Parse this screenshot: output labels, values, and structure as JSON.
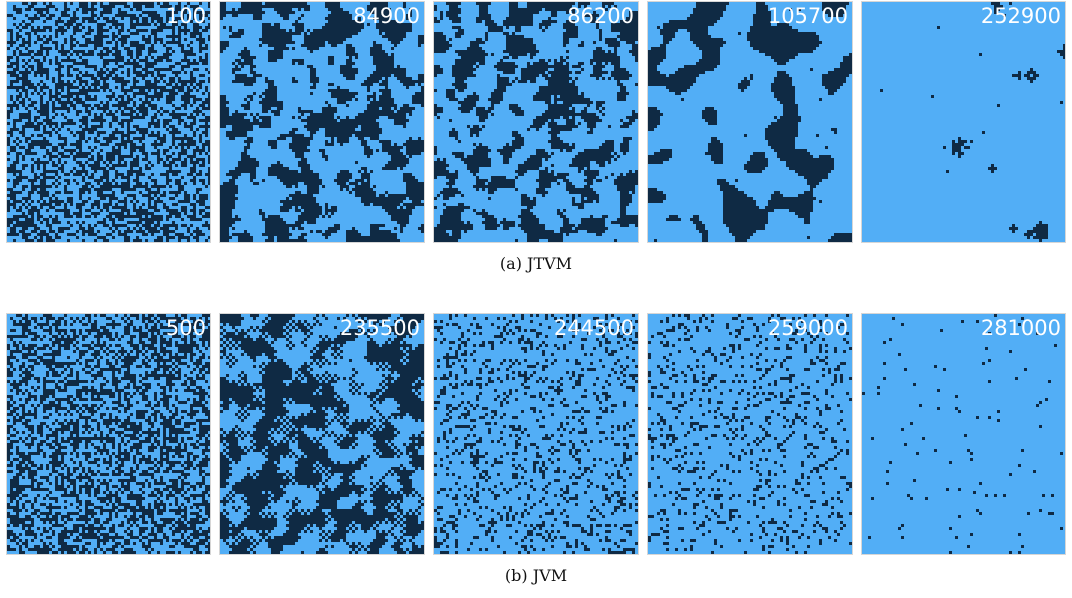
{
  "colors": {
    "background_cell": "#52aef6",
    "dark_cell": "#0f2a44",
    "label": "#ffffff"
  },
  "figure": {
    "rows": [
      {
        "caption": "(a) JTVM",
        "panels": [
          {
            "label": "100",
            "dark_fraction": 0.5,
            "texture": "noise"
          },
          {
            "label": "84900",
            "dark_fraction": 0.42,
            "texture": "patches"
          },
          {
            "label": "86200",
            "dark_fraction": 0.4,
            "texture": "patches"
          },
          {
            "label": "105700",
            "dark_fraction": 0.3,
            "texture": "blobs"
          },
          {
            "label": "252900",
            "dark_fraction": 0.02,
            "texture": "sparse-blobs"
          }
        ]
      },
      {
        "caption": "(b) JVM",
        "panels": [
          {
            "label": "500",
            "dark_fraction": 0.5,
            "texture": "noise"
          },
          {
            "label": "235500",
            "dark_fraction": 0.38,
            "texture": "patches-checker"
          },
          {
            "label": "244500",
            "dark_fraction": 0.16,
            "texture": "speckle"
          },
          {
            "label": "259000",
            "dark_fraction": 0.13,
            "texture": "speckle"
          },
          {
            "label": "281000",
            "dark_fraction": 0.02,
            "texture": "sparse-speckle"
          }
        ]
      }
    ]
  }
}
